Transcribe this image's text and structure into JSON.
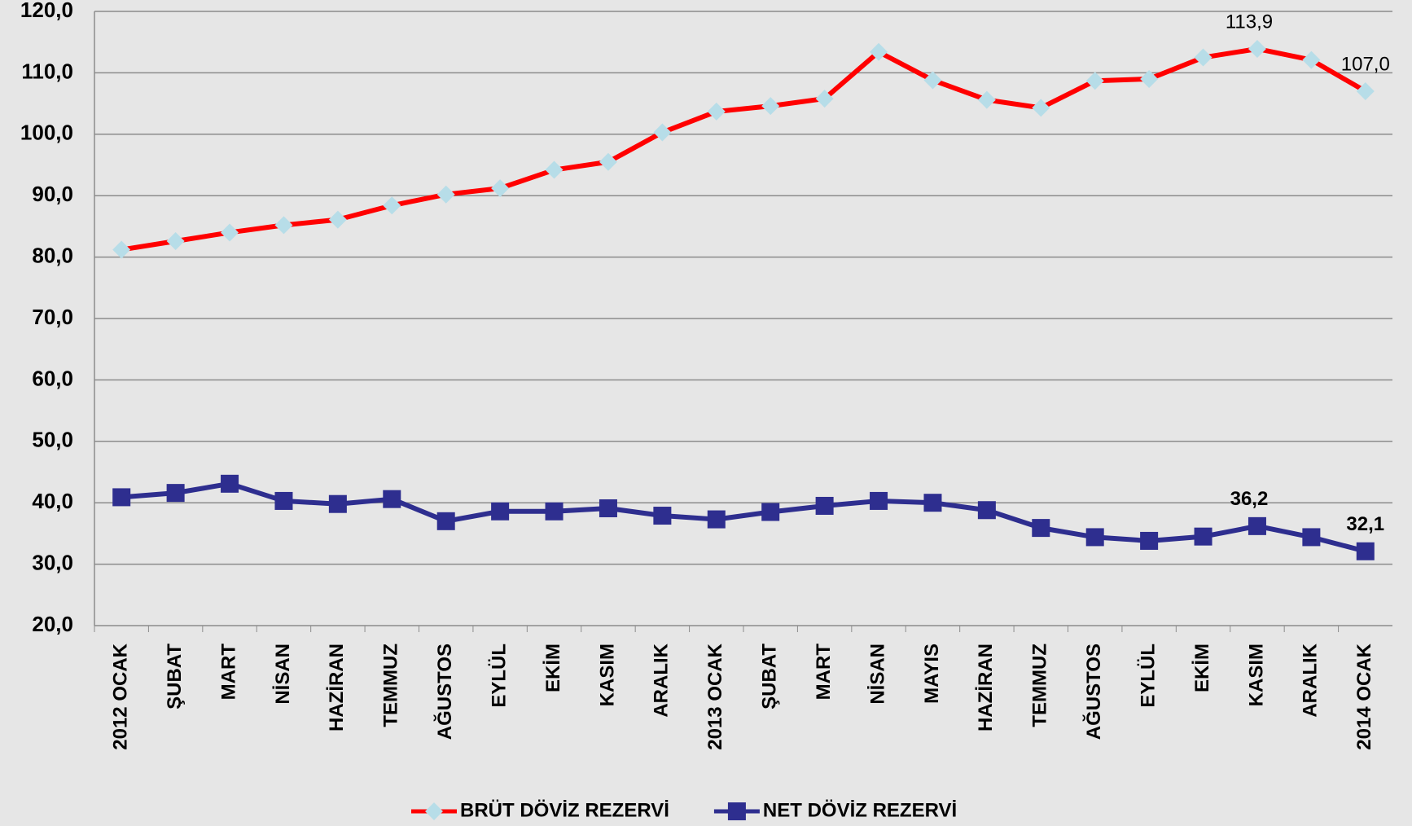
{
  "chart_data": {
    "type": "line",
    "categories": [
      "2012 OCAK",
      "ŞUBAT",
      "MART",
      "NİSAN",
      "HAZİRAN",
      "TEMMUZ",
      "AĞUSTOS",
      "EYLÜL",
      "EKİM",
      "KASIM",
      "ARALIK",
      "2013 OCAK",
      "ŞUBAT",
      "MART",
      "NİSAN",
      "MAYIS",
      "HAZİRAN",
      "TEMMUZ",
      "AĞUSTOS",
      "EYLÜL",
      "EKİM",
      "KASIM",
      "ARALIK",
      "2014 OCAK"
    ],
    "series": [
      {
        "name": "BRÜT DÖVİZ REZERVİ",
        "color": "#ff0000",
        "marker_color": "#b7dde8",
        "marker": "diamond",
        "values": [
          81.2,
          82.6,
          84.0,
          85.2,
          86.1,
          88.4,
          90.2,
          91.2,
          94.2,
          95.5,
          100.3,
          103.7,
          104.6,
          105.8,
          113.4,
          108.8,
          105.6,
          104.3,
          108.7,
          109.0,
          112.5,
          113.9,
          112.1,
          107.0
        ],
        "value_labels": [
          null,
          null,
          null,
          null,
          null,
          null,
          null,
          null,
          null,
          null,
          null,
          null,
          null,
          null,
          null,
          null,
          null,
          null,
          null,
          null,
          null,
          "113,9",
          null,
          "107,0"
        ]
      },
      {
        "name": "NET DÖVİZ REZERVİ",
        "color": "#2e2e8f",
        "marker_color": "#2e2e8f",
        "marker": "square",
        "values": [
          40.9,
          41.6,
          43.1,
          40.3,
          39.8,
          40.6,
          37.0,
          38.6,
          38.6,
          39.1,
          37.9,
          37.3,
          38.5,
          39.5,
          40.3,
          40.0,
          38.8,
          35.9,
          34.4,
          33.8,
          34.5,
          36.2,
          34.4,
          32.1
        ],
        "value_labels": [
          null,
          null,
          null,
          null,
          null,
          null,
          null,
          null,
          null,
          null,
          null,
          null,
          null,
          null,
          null,
          null,
          null,
          null,
          null,
          null,
          null,
          "36,2",
          null,
          "32,1"
        ]
      }
    ],
    "ylim": [
      20,
      120
    ],
    "yticks": [
      {
        "value": 20,
        "label": "20,0"
      },
      {
        "value": 30,
        "label": "30,0"
      },
      {
        "value": 40,
        "label": "40,0"
      },
      {
        "value": 50,
        "label": "50,0"
      },
      {
        "value": 60,
        "label": "60,0"
      },
      {
        "value": 70,
        "label": "70,0"
      },
      {
        "value": 80,
        "label": "80,0"
      },
      {
        "value": 90,
        "label": "90,0"
      },
      {
        "value": 100,
        "label": "100,0"
      },
      {
        "value": 110,
        "label": "110,0"
      },
      {
        "value": 120,
        "label": "120,0"
      }
    ],
    "grid": true,
    "legend": "bottom"
  }
}
